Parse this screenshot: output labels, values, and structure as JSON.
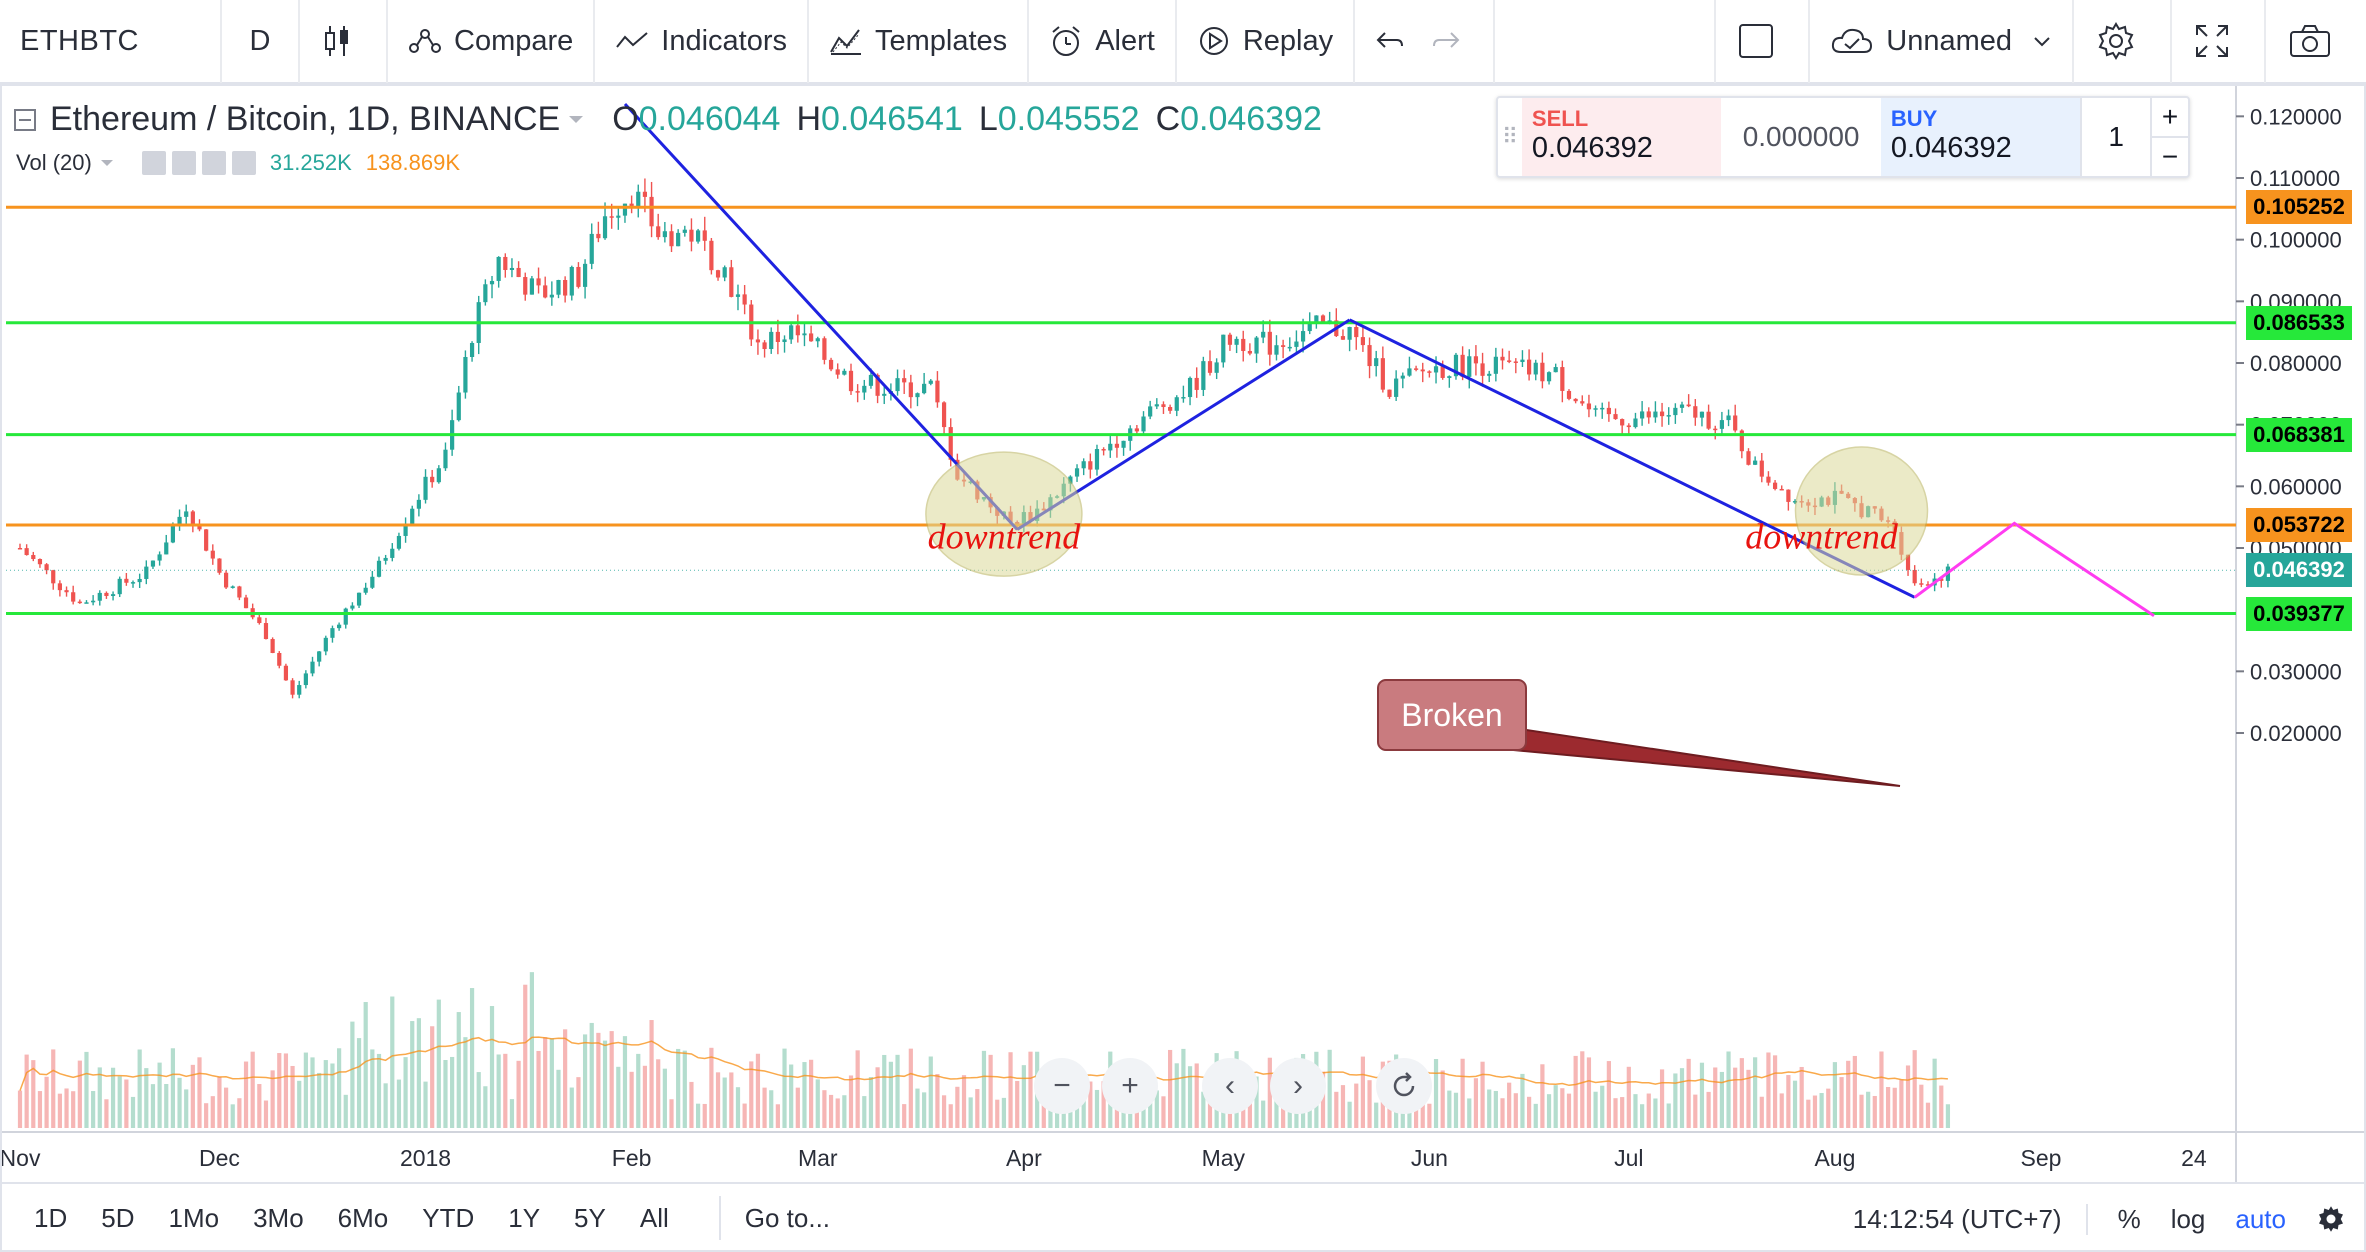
{
  "toolbar": {
    "symbol": "ETHBTC",
    "interval": "D",
    "compare_label": "Compare",
    "indicators_label": "Indicators",
    "templates_label": "Templates",
    "alert_label": "Alert",
    "replay_label": "Replay",
    "layout_name": "Unnamed"
  },
  "legend": {
    "title": "Ethereum / Bitcoin, 1D, BINANCE",
    "open_key": "O",
    "open": "0.046044",
    "high_key": "H",
    "high": "0.046541",
    "low_key": "L",
    "low": "0.045552",
    "close_key": "C",
    "close": "0.046392",
    "vol_label": "Vol (20)",
    "vol_value": "31.252K",
    "vol_ma": "138.869K"
  },
  "trade": {
    "sell_label": "SELL",
    "sell_price": "0.046392",
    "spread": "0.000000",
    "buy_label": "BUY",
    "buy_price": "0.046392",
    "quantity": "1"
  },
  "axis": {
    "y_ticks": [
      "0.120000",
      "0.110000",
      "0.100000",
      "0.090000",
      "0.080000",
      "0.070000",
      "0.060000",
      "0.050000",
      "0.030000",
      "0.020000"
    ],
    "x_ticks": [
      "Nov",
      "Dec",
      "2018",
      "Feb",
      "Mar",
      "Apr",
      "May",
      "Jun",
      "Jul",
      "Aug",
      "Sep",
      "24"
    ]
  },
  "price_labels": [
    {
      "text": "0.105252",
      "color": "#f7931e"
    },
    {
      "text": "0.086533",
      "color": "#26e83a"
    },
    {
      "text": "0.068381",
      "color": "#26e83a"
    },
    {
      "text": "0.053722",
      "color": "#f7931e"
    },
    {
      "text": "0.046392",
      "color": "#26a69a"
    },
    {
      "text": "0.039377",
      "color": "#26e83a"
    }
  ],
  "annotations": {
    "broken": "Broken",
    "downtrend1": "downtrend",
    "downtrend2": "downtrend"
  },
  "colors": {
    "up": "#26a69a",
    "down": "#ef5350",
    "orange_line": "#f7931e",
    "green_line": "#26e83a",
    "trend_line": "#1e22e0",
    "projection": "#ff3cf0",
    "ellipse": "#dcd99a",
    "callout": "#c97b7f"
  },
  "bottom": {
    "ranges": [
      "1D",
      "5D",
      "1Mo",
      "3Mo",
      "6Mo",
      "YTD",
      "1Y",
      "5Y",
      "All"
    ],
    "goto": "Go to...",
    "clock": "14:12:54 (UTC+7)",
    "percent": "%",
    "log": "log",
    "auto": "auto"
  },
  "chart_data": {
    "type": "candlestick",
    "title": "Ethereum / Bitcoin, 1D, BINANCE",
    "ylim": [
      0.018,
      0.125
    ],
    "horizontal_levels": [
      0.105252,
      0.086533,
      0.068381,
      0.053722,
      0.039377
    ],
    "close_path": [
      [
        "2017-11-01",
        0.05
      ],
      [
        "2017-11-10",
        0.041
      ],
      [
        "2017-11-20",
        0.046
      ],
      [
        "2017-11-26",
        0.057
      ],
      [
        "2017-12-01",
        0.046
      ],
      [
        "2017-12-08",
        0.036
      ],
      [
        "2017-12-12",
        0.026
      ],
      [
        "2017-12-18",
        0.037
      ],
      [
        "2017-12-25",
        0.047
      ],
      [
        "2017-12-30",
        0.057
      ],
      [
        "2018-01-04",
        0.065
      ],
      [
        "2018-01-08",
        0.085
      ],
      [
        "2018-01-12",
        0.097
      ],
      [
        "2018-01-18",
        0.091
      ],
      [
        "2018-01-24",
        0.094
      ],
      [
        "2018-01-28",
        0.104
      ],
      [
        "2018-02-01",
        0.108
      ],
      [
        "2018-02-05",
        0.101
      ],
      [
        "2018-02-10",
        0.101
      ],
      [
        "2018-02-15",
        0.095
      ],
      [
        "2018-02-20",
        0.083
      ],
      [
        "2018-02-25",
        0.085
      ],
      [
        "2018-03-01",
        0.082
      ],
      [
        "2018-03-06",
        0.077
      ],
      [
        "2018-03-12",
        0.076
      ],
      [
        "2018-03-18",
        0.076
      ],
      [
        "2018-03-22",
        0.062
      ],
      [
        "2018-03-26",
        0.058
      ],
      [
        "2018-03-30",
        0.054
      ],
      [
        "2018-04-03",
        0.056
      ],
      [
        "2018-04-08",
        0.061
      ],
      [
        "2018-04-14",
        0.067
      ],
      [
        "2018-04-20",
        0.072
      ],
      [
        "2018-04-26",
        0.076
      ],
      [
        "2018-05-02",
        0.084
      ],
      [
        "2018-05-08",
        0.083
      ],
      [
        "2018-05-16",
        0.086
      ],
      [
        "2018-05-20",
        0.085
      ],
      [
        "2018-05-26",
        0.076
      ],
      [
        "2018-06-01",
        0.079
      ],
      [
        "2018-06-08",
        0.08
      ],
      [
        "2018-06-14",
        0.079
      ],
      [
        "2018-06-20",
        0.078
      ],
      [
        "2018-06-26",
        0.071
      ],
      [
        "2018-07-02",
        0.071
      ],
      [
        "2018-07-10",
        0.072
      ],
      [
        "2018-07-16",
        0.07
      ],
      [
        "2018-07-20",
        0.063
      ],
      [
        "2018-07-26",
        0.058
      ],
      [
        "2018-08-01",
        0.058
      ],
      [
        "2018-08-06",
        0.056
      ],
      [
        "2018-08-10",
        0.053
      ],
      [
        "2018-08-13",
        0.044
      ],
      [
        "2018-08-18",
        0.046
      ]
    ],
    "trend_lines": [
      {
        "from": [
          "2018-01-31",
          0.122
        ],
        "to": [
          "2018-03-31",
          0.053
        ]
      },
      {
        "from": [
          "2018-03-31",
          0.053
        ],
        "to": [
          "2018-05-20",
          0.087
        ]
      },
      {
        "from": [
          "2018-05-20",
          0.087
        ],
        "to": [
          "2018-08-13",
          0.042
        ]
      }
    ],
    "projection": [
      [
        "2018-08-13",
        0.042
      ],
      [
        "2018-08-28",
        0.054
      ],
      [
        "2018-09-18",
        0.039
      ]
    ]
  }
}
